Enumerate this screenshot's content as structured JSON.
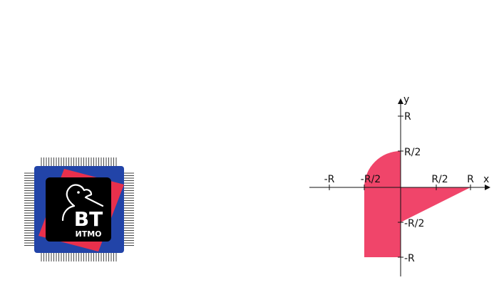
{
  "logo": {
    "line1": "BT",
    "line2": "ИТМО",
    "colors": {
      "board": "#2244a8",
      "accent": "#e8304c",
      "chip": "#000000",
      "pins": "#444444"
    }
  },
  "graph": {
    "axes": {
      "x": "x",
      "y": "y"
    },
    "x_ticks": [
      "-R",
      "-R/2",
      "R/2",
      "R"
    ],
    "y_ticks": [
      "R",
      "R/2",
      "-R/2",
      "-R"
    ],
    "fill_color": "#f0456a",
    "regions": [
      {
        "shape": "quarter-circle",
        "quadrant": "II",
        "radius": "R/2"
      },
      {
        "shape": "rectangle",
        "quadrant": "III",
        "width": "R/2",
        "height": "R"
      },
      {
        "shape": "triangle",
        "quadrant": "IV",
        "legs": [
          "R",
          "R/2"
        ]
      }
    ]
  }
}
